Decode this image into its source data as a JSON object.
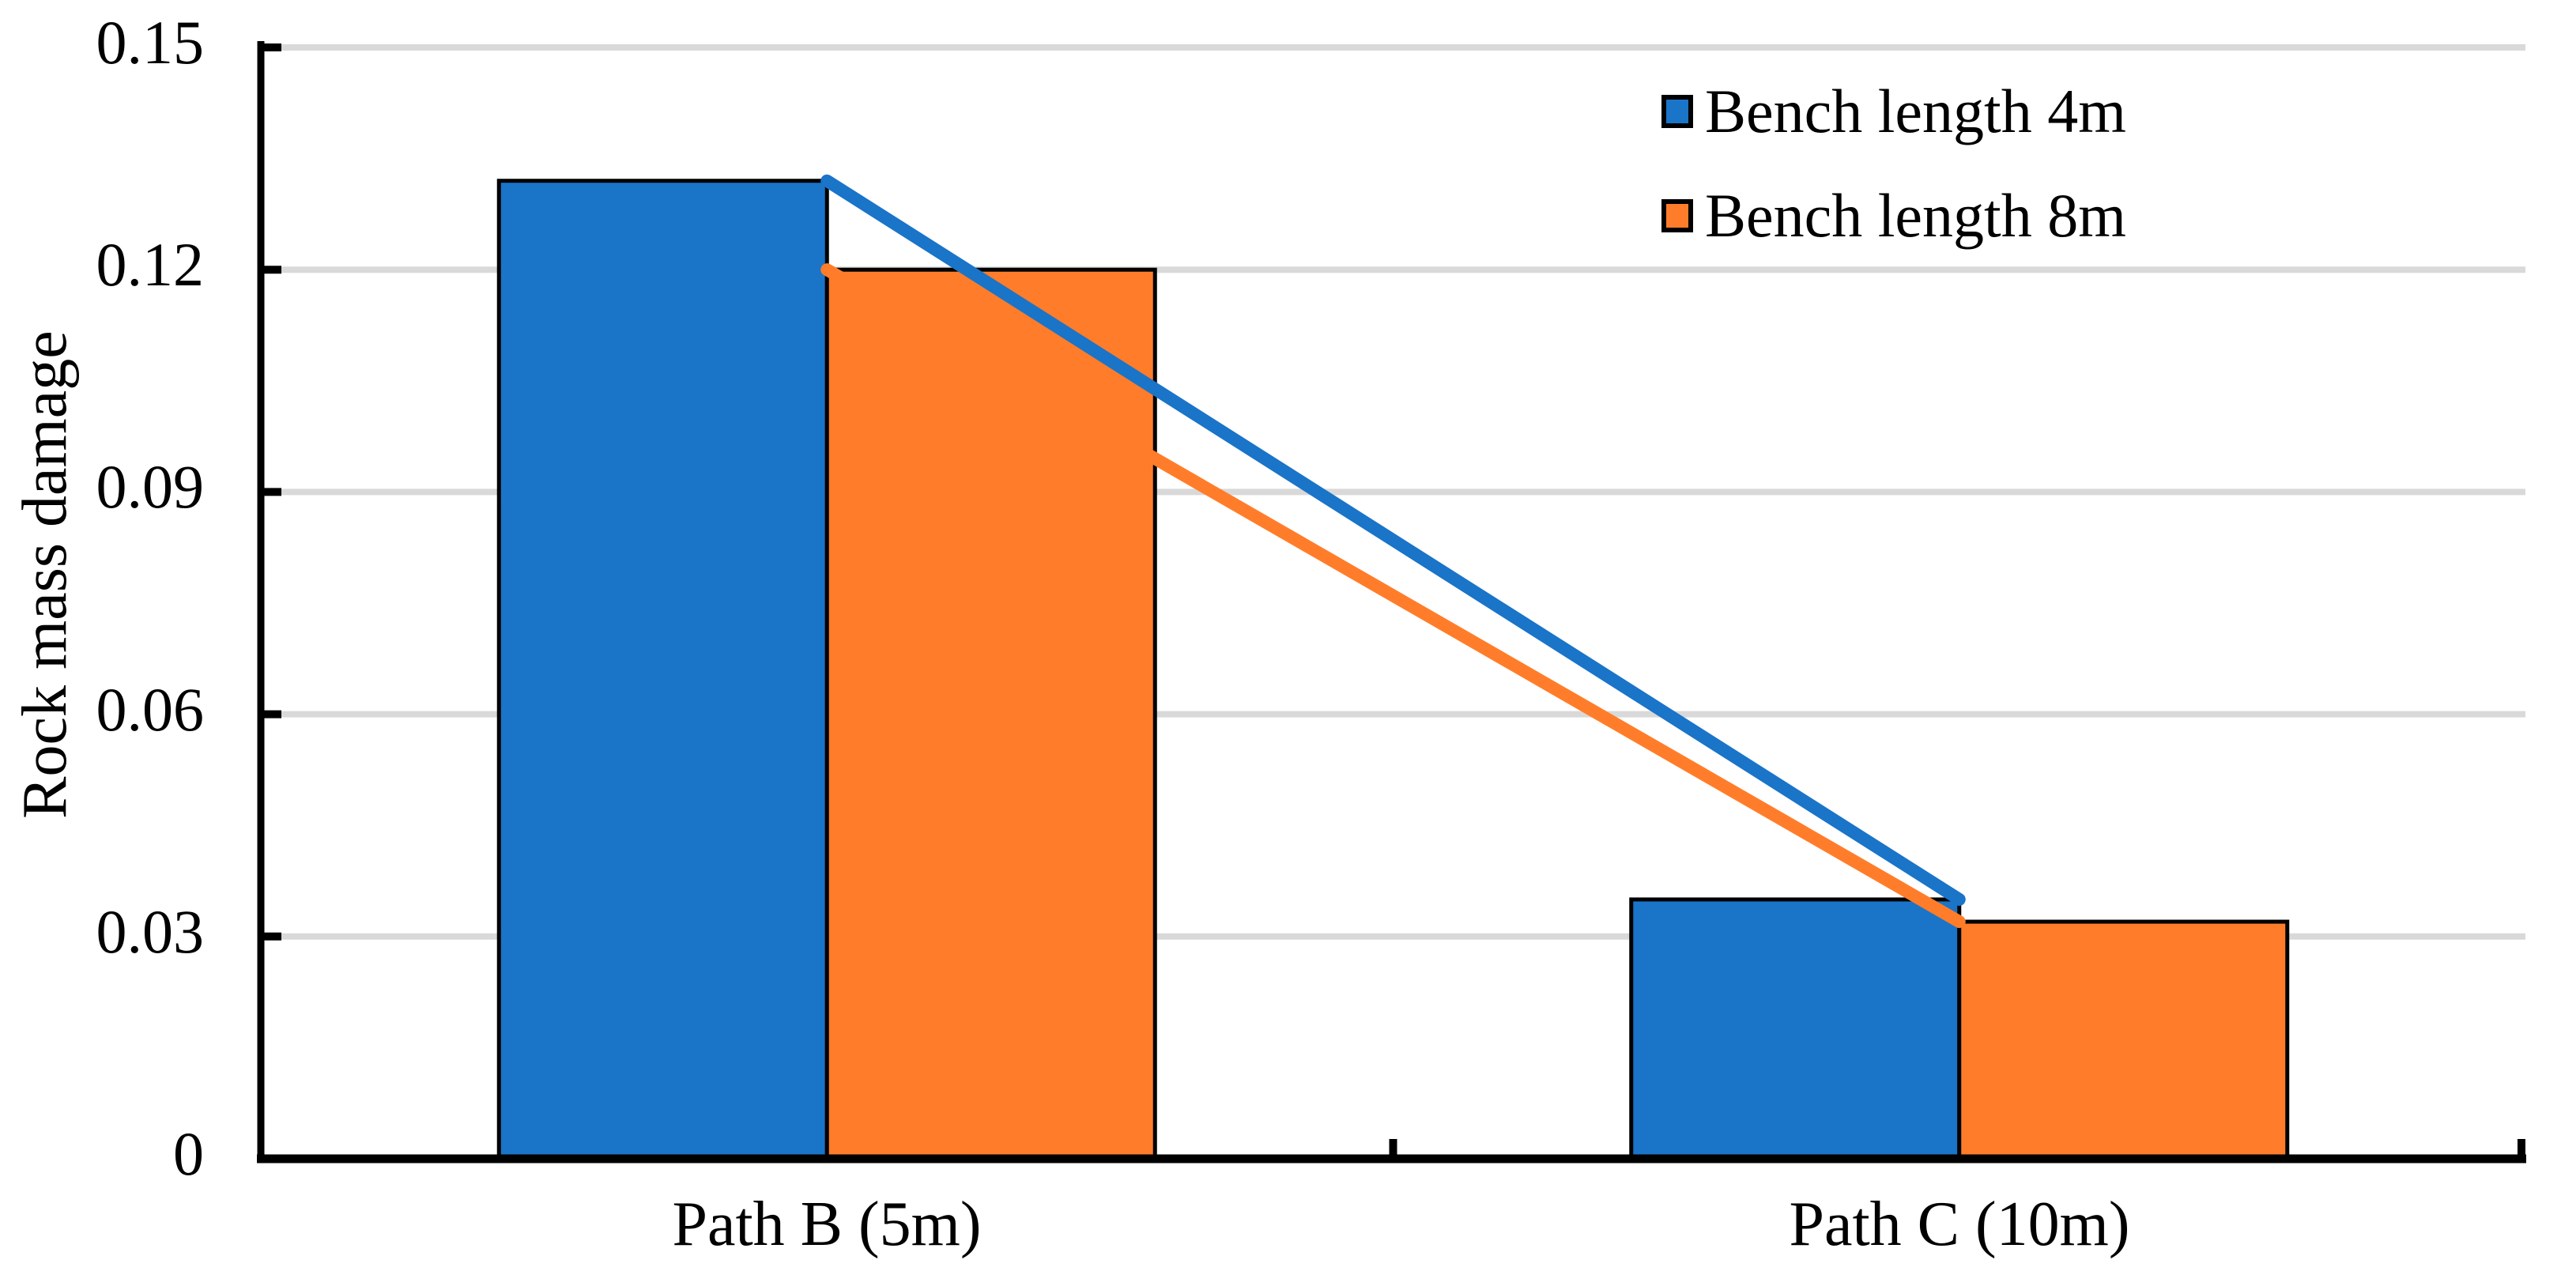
{
  "chart_data": {
    "type": "bar",
    "title": "",
    "ylabel": "Rock mass damage",
    "xlabel": "",
    "categories": [
      "Path B (5m)",
      "Path C (10m)"
    ],
    "series": [
      {
        "name": "Bench length 4m",
        "color": "#1A74C8",
        "values": [
          0.132,
          0.035
        ]
      },
      {
        "name": "Bench length 8m",
        "color": "#FF7D2A",
        "values": [
          0.12,
          0.032
        ]
      }
    ],
    "trend_lines": [
      {
        "series": "Bench length 4m",
        "color": "#1A74C8",
        "from": 0.132,
        "to": 0.035
      },
      {
        "series": "Bench length 8m",
        "color": "#FF7D2A",
        "from": 0.12,
        "to": 0.032
      }
    ],
    "ylim": [
      0,
      0.15
    ],
    "ytick_step": 0.03,
    "ytick_labels": [
      "0",
      "0.03",
      "0.06",
      "0.09",
      "0.12",
      "0.15"
    ],
    "grid": "horizontal",
    "gridline_color": "#D9D9D9",
    "axis_color": "#000000",
    "bar_border_color": "#000000",
    "legend_position": "top-right"
  }
}
